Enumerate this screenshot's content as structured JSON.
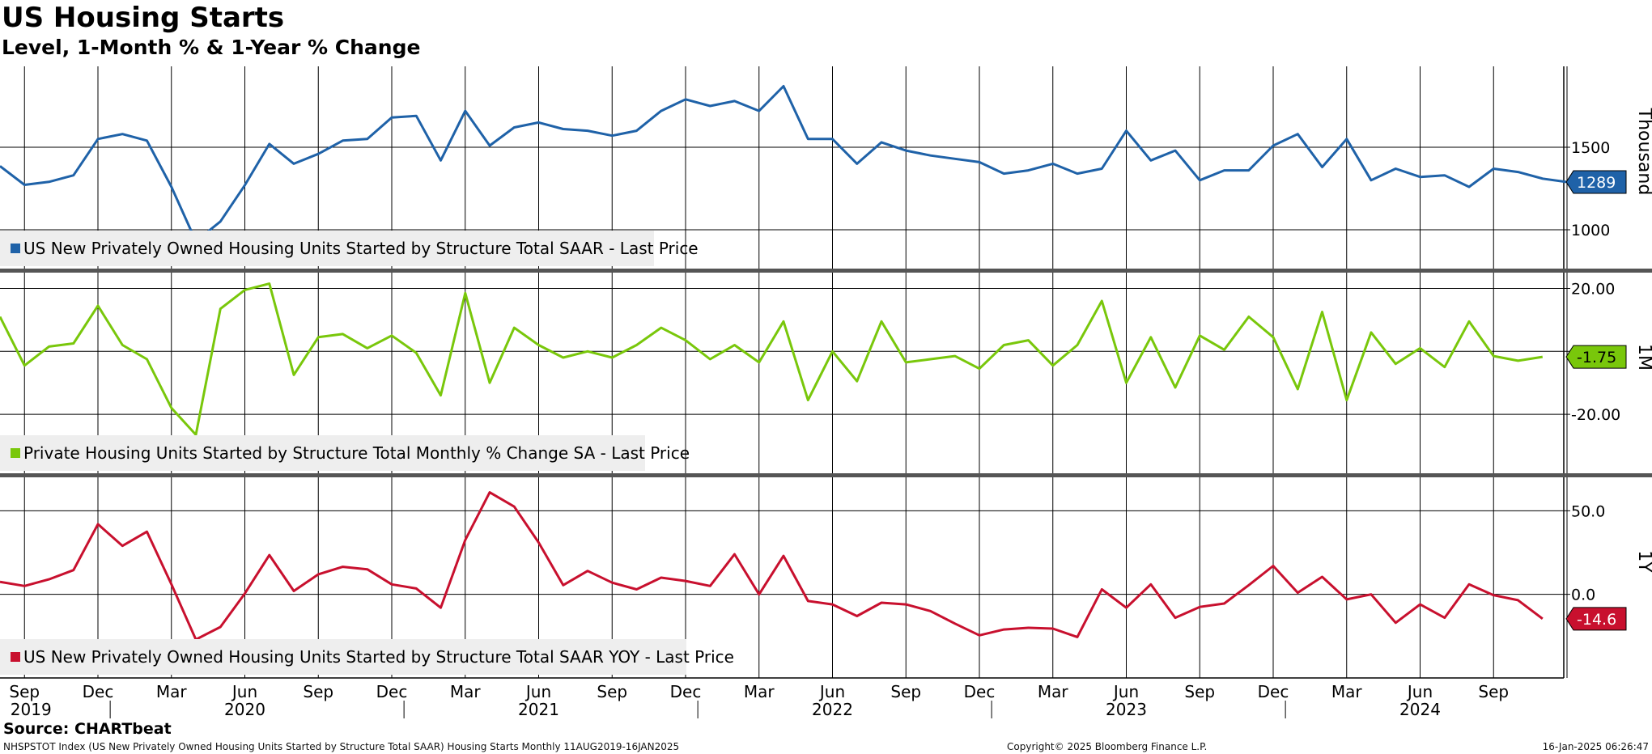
{
  "header": {
    "title": "US Housing Starts",
    "subtitle": "Level, 1-Month % & 1-Year % Change"
  },
  "source": "Source: CHARTbeat",
  "footer": {
    "left": "NHSPSTOT Index (US New Privately Owned Housing Units Started by Structure Total SAAR) Housing Starts  Monthly 11AUG2019-16JAN2025",
    "center": "Copyright© 2025 Bloomberg Finance L.P.",
    "right": "16-Jan-2025 06:26:47"
  },
  "chart_data": [
    {
      "type": "line",
      "axis_label": "Thousand",
      "ylim": [
        760,
        1990
      ],
      "yticks": [
        1000,
        1500
      ],
      "ytick_labels": [
        "1000",
        "1500"
      ],
      "grid": true,
      "legend": "bottom-left",
      "last_value_label": "1289",
      "colors": {
        "line": "#1f62a8",
        "tag": "#1f62a8"
      },
      "series": [
        {
          "name": "US New Privately Owned Housing Units Started by Structure Total SAAR - Last Price",
          "x_start": "2019-08",
          "values": [
            1386,
            1272,
            1290,
            1330,
            1550,
            1580,
            1540,
            1260,
            930,
            1050,
            1270,
            1520,
            1400,
            1460,
            1540,
            1550,
            1680,
            1690,
            1420,
            1720,
            1510,
            1620,
            1650,
            1610,
            1600,
            1570,
            1600,
            1720,
            1790,
            1750,
            1780,
            1720,
            1870,
            1550,
            1550,
            1400,
            1530,
            1480,
            1450,
            1430,
            1410,
            1340,
            1360,
            1400,
            1340,
            1370,
            1600,
            1420,
            1480,
            1300,
            1360,
            1360,
            1510,
            1580,
            1380,
            1550,
            1300,
            1370,
            1320,
            1330,
            1260,
            1370,
            1350,
            1310,
            1289
          ]
        }
      ],
      "x_axis": {
        "month_labels": [
          "Sep",
          "Dec",
          "Mar",
          "Jun",
          "Sep",
          "Dec",
          "Mar",
          "Jun",
          "Sep",
          "Dec",
          "Mar",
          "Jun",
          "Sep",
          "Dec",
          "Mar",
          "Jun",
          "Sep",
          "Dec",
          "Mar",
          "Jun",
          "Sep"
        ],
        "year_labels": [
          "2019",
          "2020",
          "2021",
          "2022",
          "2023",
          "2024"
        ]
      }
    },
    {
      "type": "line",
      "axis_label": "1M",
      "ylim": [
        -39,
        25
      ],
      "yticks": [
        -20,
        0,
        20
      ],
      "ytick_labels": [
        "-20.00",
        "",
        "20.00"
      ],
      "grid": true,
      "legend": "bottom-left",
      "last_value_label": "-1.75",
      "colors": {
        "line": "#79c70b",
        "tag": "#79c70b"
      },
      "series": [
        {
          "name": "Private Housing Units Started by Structure Total Monthly % Change SA - Last Price",
          "x_start": "2019-08",
          "values": [
            11,
            -4.5,
            1.5,
            2.5,
            14.5,
            2,
            -2.5,
            -18,
            -26.5,
            13.5,
            19.5,
            21.5,
            -7.5,
            4.5,
            5.5,
            1,
            5,
            -0.5,
            -14,
            18.5,
            -10,
            7.5,
            2,
            -2,
            0,
            -2,
            2,
            7.5,
            3.5,
            -2.5,
            2,
            -3.5,
            9.5,
            -15.5,
            0,
            -9.5,
            9.5,
            -3.5,
            -2.5,
            -1.5,
            -5.5,
            2,
            3.5,
            -4.5,
            2,
            16,
            -10,
            4.5,
            -11.5,
            5,
            0.5,
            11,
            4.5,
            -12,
            12.5,
            -15.5,
            6,
            -4,
            1,
            -5,
            9.5,
            -1.5,
            -3,
            -1.75
          ]
        }
      ]
    },
    {
      "type": "line",
      "axis_label": "1Y",
      "ylim": [
        -50,
        70
      ],
      "yticks": [
        0,
        50
      ],
      "ytick_labels": [
        "0.0",
        "50.0"
      ],
      "grid": true,
      "legend": "bottom-left",
      "last_value_label": "-14.6",
      "colors": {
        "line": "#c8102e",
        "tag": "#c8102e"
      },
      "series": [
        {
          "name": "US New Privately Owned Housing Units Started by Structure Total SAAR YOY - Last Price",
          "x_start": "2019-08",
          "values": [
            7.5,
            5,
            9,
            14.5,
            42,
            29,
            37.5,
            6,
            -27,
            -19.5,
            0.5,
            23.5,
            2,
            12,
            16.5,
            15,
            6,
            3.5,
            -8,
            32.5,
            61,
            52.5,
            31,
            5.5,
            14,
            7,
            3,
            10,
            8,
            5,
            24,
            0,
            23,
            -4,
            -6,
            -13,
            -5,
            -6,
            -10,
            -17.5,
            -24.5,
            -21,
            -20,
            -20.5,
            -25.5,
            3,
            -8,
            6,
            -14,
            -7.5,
            -5.5,
            5.5,
            17,
            1,
            10.5,
            -3,
            0,
            -17,
            -6,
            -14,
            6,
            -0.5,
            -3.5,
            -14.6
          ]
        }
      ]
    }
  ]
}
